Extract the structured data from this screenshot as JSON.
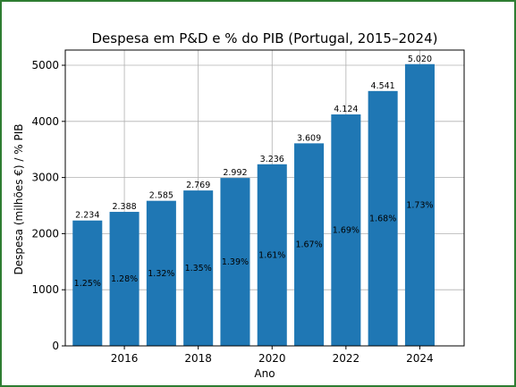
{
  "chart_data": {
    "type": "bar",
    "title": "Despesa em P&D e % do PIB (Portugal, 2015–2024)",
    "xlabel": "Ano",
    "ylabel": "Despesa (milhões €) / % PIB",
    "x": [
      2015,
      2016,
      2017,
      2018,
      2019,
      2020,
      2021,
      2022,
      2023,
      2024
    ],
    "values": [
      2234,
      2388,
      2585,
      2769,
      2992,
      3236,
      3609,
      4124,
      4541,
      5020
    ],
    "value_labels": [
      "2.234",
      "2.388",
      "2.585",
      "2.769",
      "2.992",
      "3.236",
      "3.609",
      "4.124",
      "4.541",
      "5.020"
    ],
    "pct_labels": [
      "1.25%",
      "1.28%",
      "1.32%",
      "1.35%",
      "1.39%",
      "1.61%",
      "1.67%",
      "1.69%",
      "1.68%",
      "1.73%"
    ],
    "pct_values": [
      1.25,
      1.28,
      1.32,
      1.35,
      1.39,
      1.61,
      1.67,
      1.69,
      1.68,
      1.73
    ],
    "xticks": [
      2016,
      2018,
      2020,
      2022,
      2024
    ],
    "yticks": [
      0,
      1000,
      2000,
      3000,
      4000,
      5000
    ],
    "xlim": [
      2014.4,
      2025.2
    ],
    "ylim": [
      0,
      5271
    ],
    "grid": true,
    "bar_color": "#1f77b4",
    "grid_color": "#b0b0b0",
    "frame_color": "#2e7d32"
  }
}
